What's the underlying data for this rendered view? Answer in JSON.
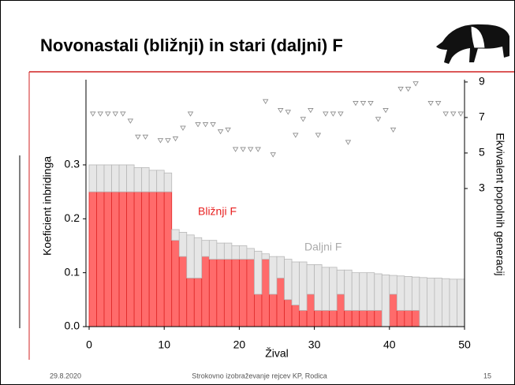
{
  "header": {
    "title": "Novonastali (bližnji) in stari (daljni) F"
  },
  "footer": {
    "date": "29.8.2020",
    "center": "Strokovno izobraževanje rejcev KP, Rodica",
    "page": "15"
  },
  "chart_data": {
    "type": "stacked-bar-scatter",
    "ylabel": "Koeficient inbridinga",
    "y2label": "Ekvivalent popolnih generacij",
    "xlabel": "Žival",
    "xlim": [
      0,
      50
    ],
    "xticks": [
      0,
      10,
      20,
      30,
      40,
      50
    ],
    "ylim": [
      0,
      0.458
    ],
    "yticks": [
      {
        "value": 0,
        "label": "0.0"
      },
      0.1,
      0.2,
      0.3
    ],
    "y2lim": [
      -4.78,
      9.13
    ],
    "y2ticks": [
      3,
      5,
      7,
      9
    ],
    "series": [
      {
        "name": "Bližnji F",
        "color": "#ff6b6b",
        "values": [
          0.25,
          0.25,
          0.25,
          0.25,
          0.25,
          0.25,
          0.25,
          0.25,
          0.25,
          0.25,
          0.25,
          0.16,
          0.13,
          0.09,
          0.09,
          0.13,
          0.125,
          0.125,
          0.125,
          0.125,
          0.125,
          0.125,
          0.06,
          0.125,
          0.06,
          0.09,
          0.05,
          0.04,
          0.03,
          0.06,
          0.03,
          0.03,
          0.03,
          0.06,
          0.03,
          0.03,
          0.03,
          0.03,
          0.03,
          0,
          0.06,
          0.03,
          0.03,
          0.03,
          0,
          0,
          0,
          0,
          0,
          0
        ]
      },
      {
        "name": "Daljni F",
        "color": "#e6e6e6",
        "values": [
          0.05,
          0.05,
          0.05,
          0.05,
          0.05,
          0.05,
          0.045,
          0.045,
          0.04,
          0.04,
          0.035,
          0.02,
          0.045,
          0.08,
          0.075,
          0.03,
          0.035,
          0.03,
          0.03,
          0.025,
          0.025,
          0.02,
          0.08,
          0.01,
          0.07,
          0.04,
          0.075,
          0.08,
          0.09,
          0.055,
          0.085,
          0.08,
          0.08,
          0.045,
          0.075,
          0.07,
          0.07,
          0.07,
          0.068,
          0.096,
          0.035,
          0.064,
          0.063,
          0.062,
          0.091,
          0.09,
          0.09,
          0.089,
          0.088,
          0.088
        ]
      },
      {
        "axis": "y2",
        "color": "#888888",
        "values": [
          7.2,
          7.2,
          7.2,
          7.2,
          7.2,
          6.8,
          5.9,
          5.9,
          null,
          5.7,
          5.7,
          5.8,
          6.4,
          7.2,
          6.6,
          6.6,
          6.6,
          6.2,
          6.3,
          5.2,
          5.2,
          5.2,
          5.2,
          7.9,
          4.9,
          7.4,
          7.3,
          6.0,
          6.9,
          7.4,
          6.0,
          7.2,
          7.2,
          7.2,
          5.6,
          7.8,
          7.8,
          7.8,
          6.9,
          7.4,
          6.3,
          8.6,
          8.6,
          8.9,
          null,
          7.8,
          7.8,
          7.2,
          7.2,
          7.2
        ]
      }
    ]
  }
}
